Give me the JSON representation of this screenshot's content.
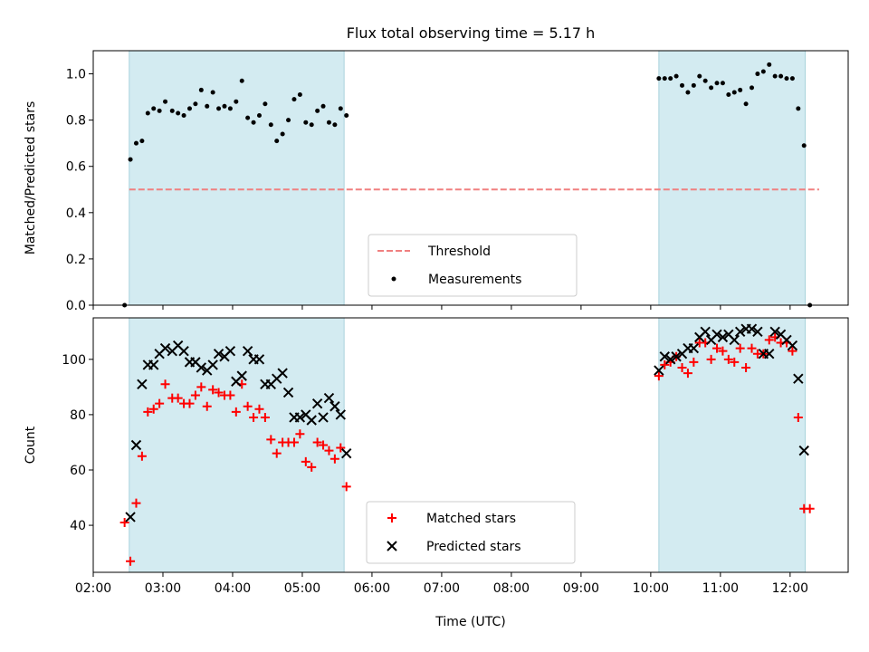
{
  "chart_data": [
    {
      "type": "scatter",
      "title": "Flux total observing time = 5.17 h",
      "xlabel": "",
      "ylabel": "Matched/Predicted stars",
      "xlim": [
        "02:00",
        "12:50"
      ],
      "ylim": [
        0,
        1.1
      ],
      "yticks": [
        "0.0",
        "0.2",
        "0.4",
        "0.6",
        "0.8",
        "1.0"
      ],
      "shaded_intervals": [
        [
          "02:31",
          "05:36"
        ],
        [
          "10:07",
          "12:13"
        ]
      ],
      "shade_color": "#d3ebf1",
      "threshold": {
        "name": "Threshold",
        "value": 0.5,
        "x_range": [
          "02:31",
          "12:25"
        ],
        "color": "#f08080"
      },
      "legend": {
        "position": "lower-center",
        "entries": [
          "Threshold",
          "Measurements"
        ]
      },
      "series": [
        {
          "name": "Measurements",
          "marker": "dot",
          "color": "#000000",
          "points": [
            [
              "02:27",
              0.0
            ],
            [
              "02:32",
              0.63
            ],
            [
              "02:37",
              0.7
            ],
            [
              "02:42",
              0.71
            ],
            [
              "02:47",
              0.83
            ],
            [
              "02:52",
              0.85
            ],
            [
              "02:57",
              0.84
            ],
            [
              "03:02",
              0.88
            ],
            [
              "03:08",
              0.84
            ],
            [
              "03:13",
              0.83
            ],
            [
              "03:18",
              0.82
            ],
            [
              "03:23",
              0.85
            ],
            [
              "03:28",
              0.87
            ],
            [
              "03:33",
              0.93
            ],
            [
              "03:38",
              0.86
            ],
            [
              "03:43",
              0.92
            ],
            [
              "03:48",
              0.85
            ],
            [
              "03:53",
              0.86
            ],
            [
              "03:58",
              0.85
            ],
            [
              "04:03",
              0.88
            ],
            [
              "04:08",
              0.97
            ],
            [
              "04:13",
              0.81
            ],
            [
              "04:18",
              0.79
            ],
            [
              "04:23",
              0.82
            ],
            [
              "04:28",
              0.87
            ],
            [
              "04:33",
              0.78
            ],
            [
              "04:38",
              0.71
            ],
            [
              "04:43",
              0.74
            ],
            [
              "04:48",
              0.8
            ],
            [
              "04:53",
              0.89
            ],
            [
              "04:58",
              0.91
            ],
            [
              "05:03",
              0.79
            ],
            [
              "05:08",
              0.78
            ],
            [
              "05:13",
              0.84
            ],
            [
              "05:18",
              0.86
            ],
            [
              "05:23",
              0.79
            ],
            [
              "05:28",
              0.78
            ],
            [
              "05:33",
              0.85
            ],
            [
              "05:38",
              0.82
            ],
            [
              "10:07",
              0.98
            ],
            [
              "10:12",
              0.98
            ],
            [
              "10:17",
              0.98
            ],
            [
              "10:22",
              0.99
            ],
            [
              "10:27",
              0.95
            ],
            [
              "10:32",
              0.92
            ],
            [
              "10:37",
              0.95
            ],
            [
              "10:42",
              0.99
            ],
            [
              "10:47",
              0.97
            ],
            [
              "10:52",
              0.94
            ],
            [
              "10:57",
              0.96
            ],
            [
              "11:02",
              0.96
            ],
            [
              "11:07",
              0.91
            ],
            [
              "11:12",
              0.92
            ],
            [
              "11:17",
              0.93
            ],
            [
              "11:22",
              0.87
            ],
            [
              "11:27",
              0.94
            ],
            [
              "11:32",
              1.0
            ],
            [
              "11:37",
              1.01
            ],
            [
              "11:42",
              1.04
            ],
            [
              "11:47",
              0.99
            ],
            [
              "11:52",
              0.99
            ],
            [
              "11:57",
              0.98
            ],
            [
              "12:02",
              0.98
            ],
            [
              "12:07",
              0.85
            ],
            [
              "12:12",
              0.69
            ],
            [
              "12:17",
              0.0
            ]
          ]
        }
      ]
    },
    {
      "type": "scatter",
      "title": "",
      "xlabel": "Time (UTC)",
      "ylabel": "Count",
      "xlim": [
        "02:00",
        "12:50"
      ],
      "ylim": [
        23,
        115
      ],
      "yticks": [
        "40",
        "60",
        "80",
        "100"
      ],
      "xticks": [
        "02:00",
        "03:00",
        "04:00",
        "05:00",
        "06:00",
        "07:00",
        "08:00",
        "09:00",
        "10:00",
        "11:00",
        "12:00"
      ],
      "shaded_intervals": [
        [
          "02:31",
          "05:36"
        ],
        [
          "10:07",
          "12:13"
        ]
      ],
      "shade_color": "#d3ebf1",
      "legend": {
        "position": "lower-center",
        "entries": [
          "Matched stars",
          "Predicted stars"
        ]
      },
      "series": [
        {
          "name": "Matched stars",
          "marker": "plus",
          "color": "#ff0000",
          "points": [
            [
              "02:27",
              41
            ],
            [
              "02:32",
              27
            ],
            [
              "02:37",
              48
            ],
            [
              "02:42",
              65
            ],
            [
              "02:47",
              81
            ],
            [
              "02:52",
              82
            ],
            [
              "02:57",
              84
            ],
            [
              "03:02",
              91
            ],
            [
              "03:08",
              86
            ],
            [
              "03:13",
              86
            ],
            [
              "03:18",
              84
            ],
            [
              "03:23",
              84
            ],
            [
              "03:28",
              87
            ],
            [
              "03:33",
              90
            ],
            [
              "03:38",
              83
            ],
            [
              "03:43",
              89
            ],
            [
              "03:48",
              88
            ],
            [
              "03:53",
              87
            ],
            [
              "03:58",
              87
            ],
            [
              "04:03",
              81
            ],
            [
              "04:08",
              91
            ],
            [
              "04:13",
              83
            ],
            [
              "04:18",
              79
            ],
            [
              "04:23",
              82
            ],
            [
              "04:28",
              79
            ],
            [
              "04:33",
              71
            ],
            [
              "04:38",
              66
            ],
            [
              "04:43",
              70
            ],
            [
              "04:48",
              70
            ],
            [
              "04:53",
              70
            ],
            [
              "04:58",
              73
            ],
            [
              "05:03",
              63
            ],
            [
              "05:08",
              61
            ],
            [
              "05:13",
              70
            ],
            [
              "05:18",
              69
            ],
            [
              "05:23",
              67
            ],
            [
              "05:28",
              64
            ],
            [
              "05:33",
              68
            ],
            [
              "05:38",
              54
            ],
            [
              "10:07",
              94
            ],
            [
              "10:12",
              98
            ],
            [
              "10:17",
              99
            ],
            [
              "10:22",
              101
            ],
            [
              "10:27",
              97
            ],
            [
              "10:32",
              95
            ],
            [
              "10:37",
              99
            ],
            [
              "10:42",
              106
            ],
            [
              "10:47",
              106
            ],
            [
              "10:52",
              100
            ],
            [
              "10:57",
              104
            ],
            [
              "11:02",
              103
            ],
            [
              "11:07",
              100
            ],
            [
              "11:12",
              99
            ],
            [
              "11:17",
              104
            ],
            [
              "11:22",
              97
            ],
            [
              "11:27",
              104
            ],
            [
              "11:32",
              102
            ],
            [
              "11:37",
              102
            ],
            [
              "11:42",
              107
            ],
            [
              "11:47",
              108
            ],
            [
              "11:52",
              106
            ],
            [
              "11:57",
              106
            ],
            [
              "12:02",
              103
            ],
            [
              "12:07",
              79
            ],
            [
              "12:12",
              46
            ],
            [
              "12:17",
              46
            ]
          ]
        },
        {
          "name": "Predicted stars",
          "marker": "x",
          "color": "#000000",
          "points": [
            [
              "02:32",
              43
            ],
            [
              "02:37",
              69
            ],
            [
              "02:42",
              91
            ],
            [
              "02:47",
              98
            ],
            [
              "02:52",
              98
            ],
            [
              "02:57",
              102
            ],
            [
              "03:02",
              104
            ],
            [
              "03:08",
              103
            ],
            [
              "03:13",
              105
            ],
            [
              "03:18",
              103
            ],
            [
              "03:23",
              99
            ],
            [
              "03:28",
              99
            ],
            [
              "03:33",
              97
            ],
            [
              "03:38",
              96
            ],
            [
              "03:43",
              98
            ],
            [
              "03:48",
              102
            ],
            [
              "03:53",
              101
            ],
            [
              "03:58",
              103
            ],
            [
              "04:03",
              92
            ],
            [
              "04:08",
              94
            ],
            [
              "04:13",
              103
            ],
            [
              "04:18",
              100
            ],
            [
              "04:23",
              100
            ],
            [
              "04:28",
              91
            ],
            [
              "04:33",
              91
            ],
            [
              "04:38",
              93
            ],
            [
              "04:43",
              95
            ],
            [
              "04:48",
              88
            ],
            [
              "04:53",
              79
            ],
            [
              "04:58",
              79
            ],
            [
              "05:03",
              80
            ],
            [
              "05:08",
              78
            ],
            [
              "05:13",
              84
            ],
            [
              "05:18",
              79
            ],
            [
              "05:23",
              86
            ],
            [
              "05:28",
              83
            ],
            [
              "05:33",
              80
            ],
            [
              "05:38",
              66
            ],
            [
              "10:07",
              96
            ],
            [
              "10:12",
              101
            ],
            [
              "10:17",
              100
            ],
            [
              "10:22",
              101
            ],
            [
              "10:27",
              102
            ],
            [
              "10:32",
              104
            ],
            [
              "10:37",
              104
            ],
            [
              "10:42",
              108
            ],
            [
              "10:47",
              110
            ],
            [
              "10:52",
              107
            ],
            [
              "10:57",
              109
            ],
            [
              "11:02",
              108
            ],
            [
              "11:07",
              109
            ],
            [
              "11:12",
              107
            ],
            [
              "11:17",
              110
            ],
            [
              "11:22",
              111
            ],
            [
              "11:27",
              111
            ],
            [
              "11:32",
              110
            ],
            [
              "11:37",
              102
            ],
            [
              "11:42",
              102
            ],
            [
              "11:47",
              110
            ],
            [
              "11:52",
              109
            ],
            [
              "11:57",
              107
            ],
            [
              "12:02",
              105
            ],
            [
              "12:07",
              93
            ],
            [
              "12:12",
              67
            ]
          ]
        }
      ]
    }
  ]
}
